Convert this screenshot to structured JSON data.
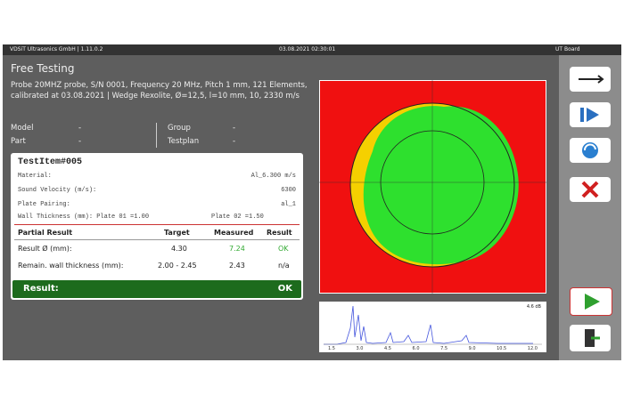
{
  "titlebar": {
    "app": "VDSiT Ultrasonics GmbH | 1.11.0.2",
    "datetime": "03.08.2021 02:30:01",
    "board": "UT Board"
  },
  "header": {
    "title": "Free Testing",
    "probe": "Probe 20MHZ probe, S/N 0001, Frequency 20 MHz, Pitch 1 mm, 121 Elements, calibrated at 03.08.2021 | Wedge Rexolite, Ø=12,5, l=10 mm, 10, 2330 m/s"
  },
  "info": {
    "model_label": "Model",
    "model_value": "-",
    "part_label": "Part",
    "part_value": "-",
    "group_label": "Group",
    "group_value": "-",
    "testplan_label": "Testplan",
    "testplan_value": "-"
  },
  "card": {
    "title": "TestItem#005",
    "fields": [
      [
        "Material:",
        "Al_6.300 m/s"
      ],
      [
        "Sound Velocity (m/s):",
        "6300"
      ],
      [
        "Plate Pairing:",
        "al_1"
      ]
    ],
    "wall": "Wall Thickness (mm):  Plate 01 =1.00",
    "wall2": "Plate 02 =1.50",
    "table": {
      "header": [
        "Partial Result",
        "Target",
        "Measured",
        "Result"
      ],
      "rows": [
        [
          "Result Ø (mm):",
          "4.30",
          "7.24",
          "OK"
        ],
        [
          "Remain. wall thickness (mm):",
          "2.00 - 2.45",
          "2.43",
          "n/a"
        ]
      ]
    },
    "result_label": "Result:",
    "result_value": "OK"
  },
  "waveform": {
    "gain": "4.6 dB",
    "x_labels": [
      "1.5",
      "3.0",
      "4.5",
      "6.0",
      "7.5",
      "9.0",
      "10.5",
      "12.0"
    ]
  }
}
